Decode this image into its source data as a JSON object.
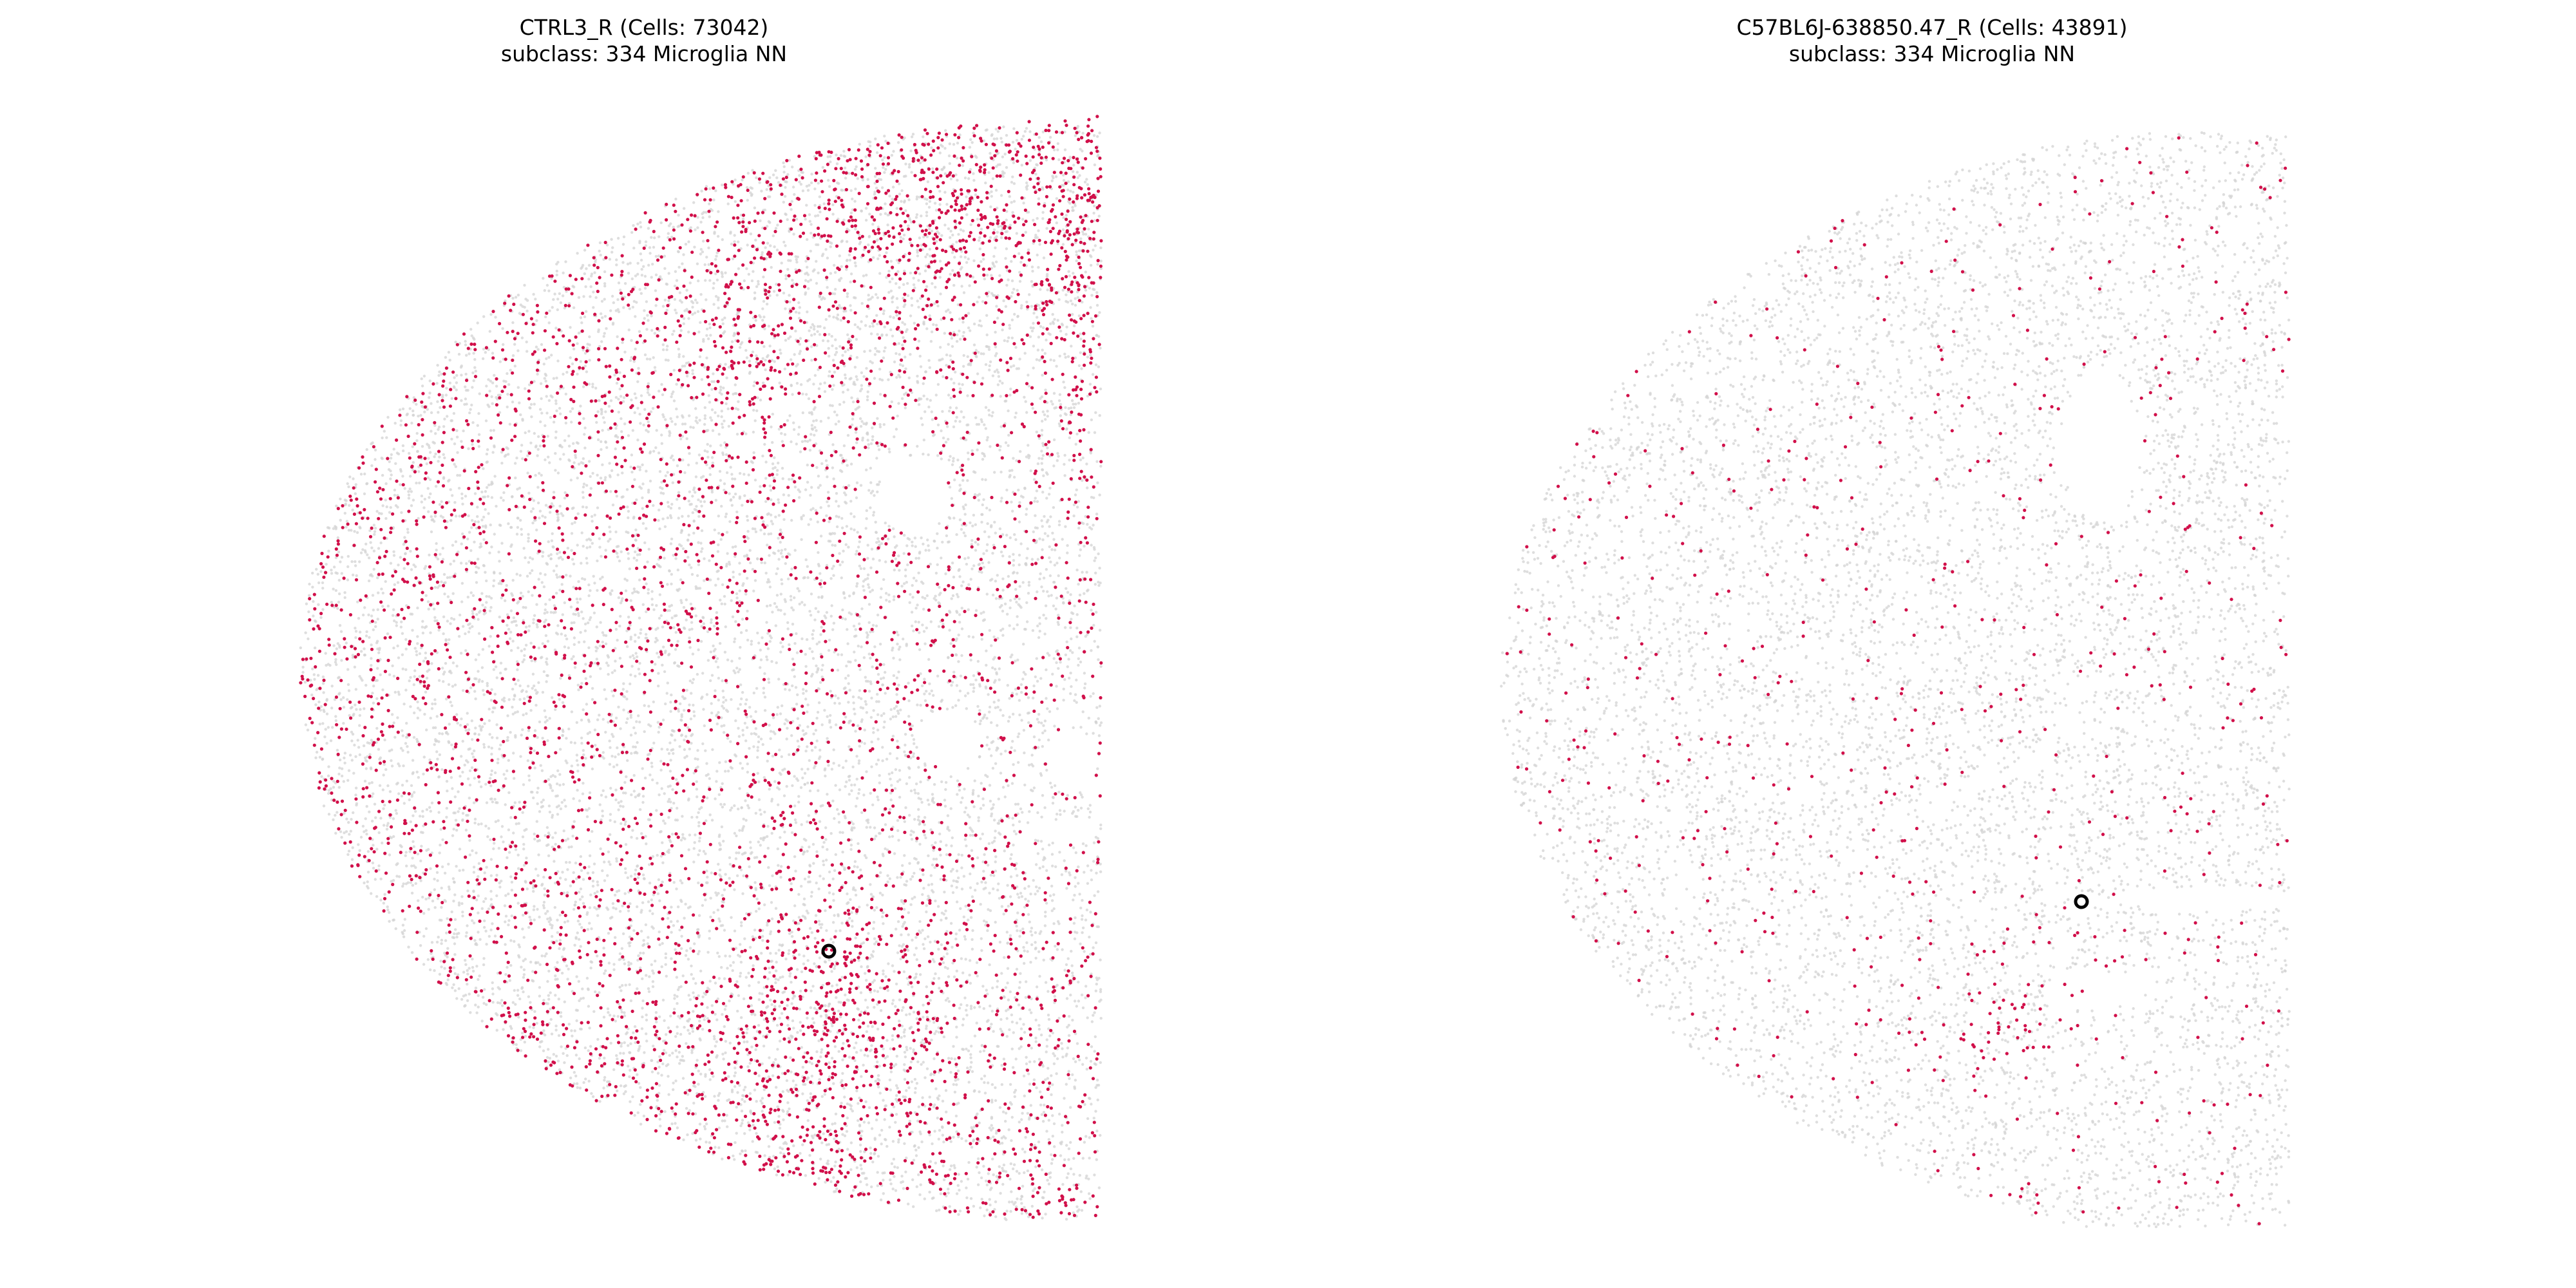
{
  "chart_data": [
    {
      "type": "scatter",
      "title": "CTRL3_R (Cells: 73042)",
      "subtitle": "subclass: 334 Microglia NN",
      "sample": "CTRL3_R",
      "cell_count": 73042,
      "subclass": "334 Microglia NN",
      "axes_visible": false,
      "grid": false,
      "legend": false,
      "series": [
        {
          "role": "background",
          "color": "#d3d3d3"
        },
        {
          "role": "highlight",
          "color": "#d1104a"
        },
        {
          "role": "marker",
          "color": "#000000"
        }
      ]
    },
    {
      "type": "scatter",
      "title": "C57BL6J-638850.47_R (Cells: 43891)",
      "subtitle": "subclass: 334 Microglia NN",
      "sample": "C57BL6J-638850.47_R",
      "cell_count": 43891,
      "subclass": "334 Microglia NN",
      "axes_visible": false,
      "grid": false,
      "legend": false,
      "series": [
        {
          "role": "background",
          "color": "#d3d3d3"
        },
        {
          "role": "highlight",
          "color": "#d1104a"
        },
        {
          "role": "marker",
          "color": "#000000"
        }
      ]
    }
  ]
}
